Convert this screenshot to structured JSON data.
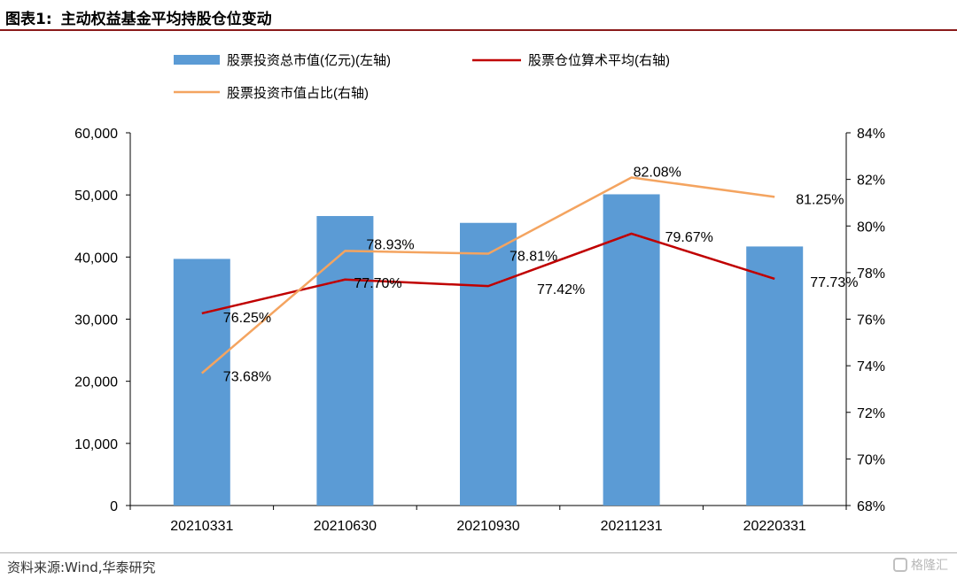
{
  "header": {
    "figure_label": "图表1:",
    "title": "主动权益基金平均持股仓位变动"
  },
  "source": "资料来源:Wind,华泰研究",
  "watermark": "格隆汇",
  "colors": {
    "bar": "#5b9bd5",
    "line_position": "#c00000",
    "line_ratio": "#f4a460",
    "rule": "#8b1a1a"
  },
  "chart_data": {
    "type": "bar",
    "categories": [
      "20210331",
      "20210630",
      "20210930",
      "20211231",
      "20220331"
    ],
    "y_left": {
      "ylim": [
        0,
        60000
      ],
      "ticks": [
        0,
        10000,
        20000,
        30000,
        40000,
        50000,
        60000
      ],
      "tick_labels": [
        "0",
        "10,000",
        "20,000",
        "30,000",
        "40,000",
        "50,000",
        "60,000"
      ]
    },
    "y_right": {
      "ylim": [
        68,
        84
      ],
      "ticks": [
        68,
        70,
        72,
        74,
        76,
        78,
        80,
        82,
        84
      ],
      "tick_labels": [
        "68%",
        "70%",
        "72%",
        "74%",
        "76%",
        "78%",
        "80%",
        "82%",
        "84%"
      ]
    },
    "series": [
      {
        "name": "股票投资总市值(亿元)(左轴)",
        "type": "bar",
        "axis": "left",
        "values": [
          39700,
          46600,
          45500,
          50100,
          41700
        ]
      },
      {
        "name": "股票仓位算术平均(右轴)",
        "type": "line",
        "axis": "right",
        "values": [
          76.25,
          77.7,
          77.42,
          79.67,
          77.73
        ],
        "labels": [
          "76.25%",
          "77.70%",
          "77.42%",
          "79.67%",
          "77.73%"
        ]
      },
      {
        "name": "股票投资市值占比(右轴)",
        "type": "line",
        "axis": "right",
        "values": [
          73.68,
          78.93,
          78.81,
          82.08,
          81.25
        ],
        "labels": [
          "73.68%",
          "78.93%",
          "78.81%",
          "82.08%",
          "81.25%"
        ]
      }
    ],
    "legend_position": "top"
  }
}
